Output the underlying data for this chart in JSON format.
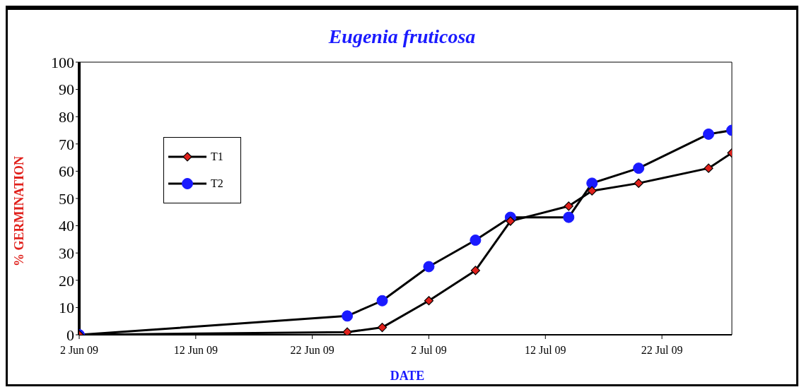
{
  "chart_data": {
    "type": "line",
    "title": "Eugenia fruticosa",
    "xlabel": "DATE",
    "ylabel": "% GERMINATION",
    "x": [
      "--06-02",
      "--06-25",
      "--06-28",
      "--07-02",
      "--07-06",
      "--07-09",
      "--07-14",
      "--07-16",
      "--07-20",
      "--07-26",
      "--07-28"
    ],
    "series": [
      {
        "name": "T1",
        "color": "#e0201b",
        "marker": "diamond",
        "values": [
          0,
          1,
          2.7,
          12.5,
          23.6,
          41.7,
          47.2,
          52.8,
          55.6,
          61.1,
          66.7
        ]
      },
      {
        "name": "T2",
        "color": "#1a1aff",
        "marker": "circle",
        "values": [
          0,
          6.9,
          12.5,
          25,
          34.7,
          43.1,
          43.1,
          55.6,
          61.1,
          73.6,
          75
        ]
      }
    ],
    "xlim": [
      "--06-02",
      "--07-28"
    ],
    "xticks": [
      {
        "value": "--06-02",
        "label": "2 Jun 09"
      },
      {
        "value": "--06-12",
        "label": "12 Jun 09"
      },
      {
        "value": "--06-22",
        "label": "22 Jun 09"
      },
      {
        "value": "--07-02",
        "label": "2 Jul 09"
      },
      {
        "value": "--07-12",
        "label": "12 Jul 09"
      },
      {
        "value": "--07-22",
        "label": "22 Jul 09"
      }
    ],
    "ylim": [
      0,
      100
    ],
    "yticks": [
      0,
      10,
      20,
      30,
      40,
      50,
      60,
      70,
      80,
      90,
      100
    ],
    "grid": false,
    "legend": "top left",
    "line_style": "solid"
  }
}
